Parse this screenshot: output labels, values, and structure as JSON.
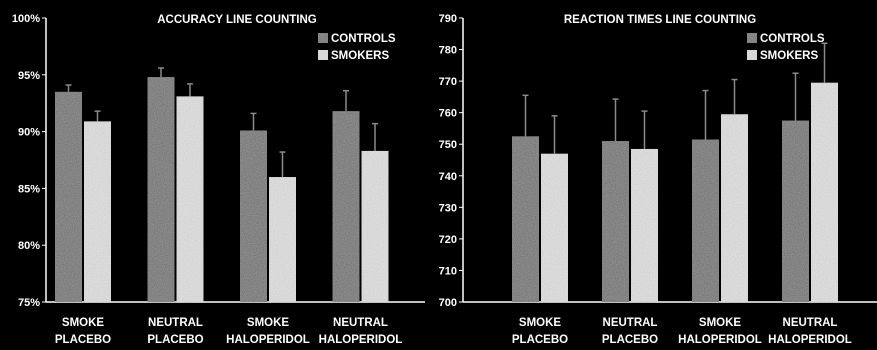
{
  "chart_data": [
    {
      "type": "bar",
      "title": "ACCURACY LINE COUNTING",
      "categories": [
        [
          "SMOKE",
          "PLACEBO"
        ],
        [
          "NEUTRAL",
          "PLACEBO"
        ],
        [
          "SMOKE",
          "HALOPERIDOL"
        ],
        [
          "NEUTRAL",
          "HALOPERIDOL"
        ]
      ],
      "series": [
        {
          "name": "CONTROLS",
          "values": [
            93.5,
            94.8,
            90.1,
            91.8
          ],
          "errors": [
            0.6,
            0.8,
            1.5,
            1.8
          ],
          "color": "#9a9a9a"
        },
        {
          "name": "SMOKERS",
          "values": [
            90.9,
            93.1,
            86.0,
            88.3
          ],
          "errors": [
            0.9,
            1.1,
            2.2,
            2.4
          ],
          "color": "#e6e6e6"
        }
      ],
      "ylim": [
        75,
        100
      ],
      "yticks": [
        "75%",
        "80%",
        "85%",
        "90%",
        "95%",
        "100%"
      ],
      "legend": "top-right",
      "grid": false
    },
    {
      "type": "bar",
      "title": "REACTION TIMES LINE COUNTING",
      "categories": [
        [
          "SMOKE",
          "PLACEBO"
        ],
        [
          "NEUTRAL",
          "PLACEBO"
        ],
        [
          "SMOKE",
          "HALOPERIDOL"
        ],
        [
          "NEUTRAL",
          "HALOPERIDOL"
        ]
      ],
      "series": [
        {
          "name": "CONTROLS",
          "values": [
            752.5,
            751.0,
            751.5,
            757.5
          ],
          "errors": [
            13.0,
            13.3,
            15.5,
            15.0
          ],
          "color": "#9a9a9a"
        },
        {
          "name": "SMOKERS",
          "values": [
            747.0,
            748.5,
            759.5,
            769.5
          ],
          "errors": [
            12.0,
            12.0,
            11.0,
            12.5
          ],
          "color": "#e6e6e6"
        }
      ],
      "ylim": [
        700,
        790
      ],
      "yticks": [
        "700",
        "710",
        "720",
        "730",
        "740",
        "750",
        "760",
        "770",
        "780",
        "790"
      ],
      "legend": "top-right",
      "grid": false
    }
  ]
}
